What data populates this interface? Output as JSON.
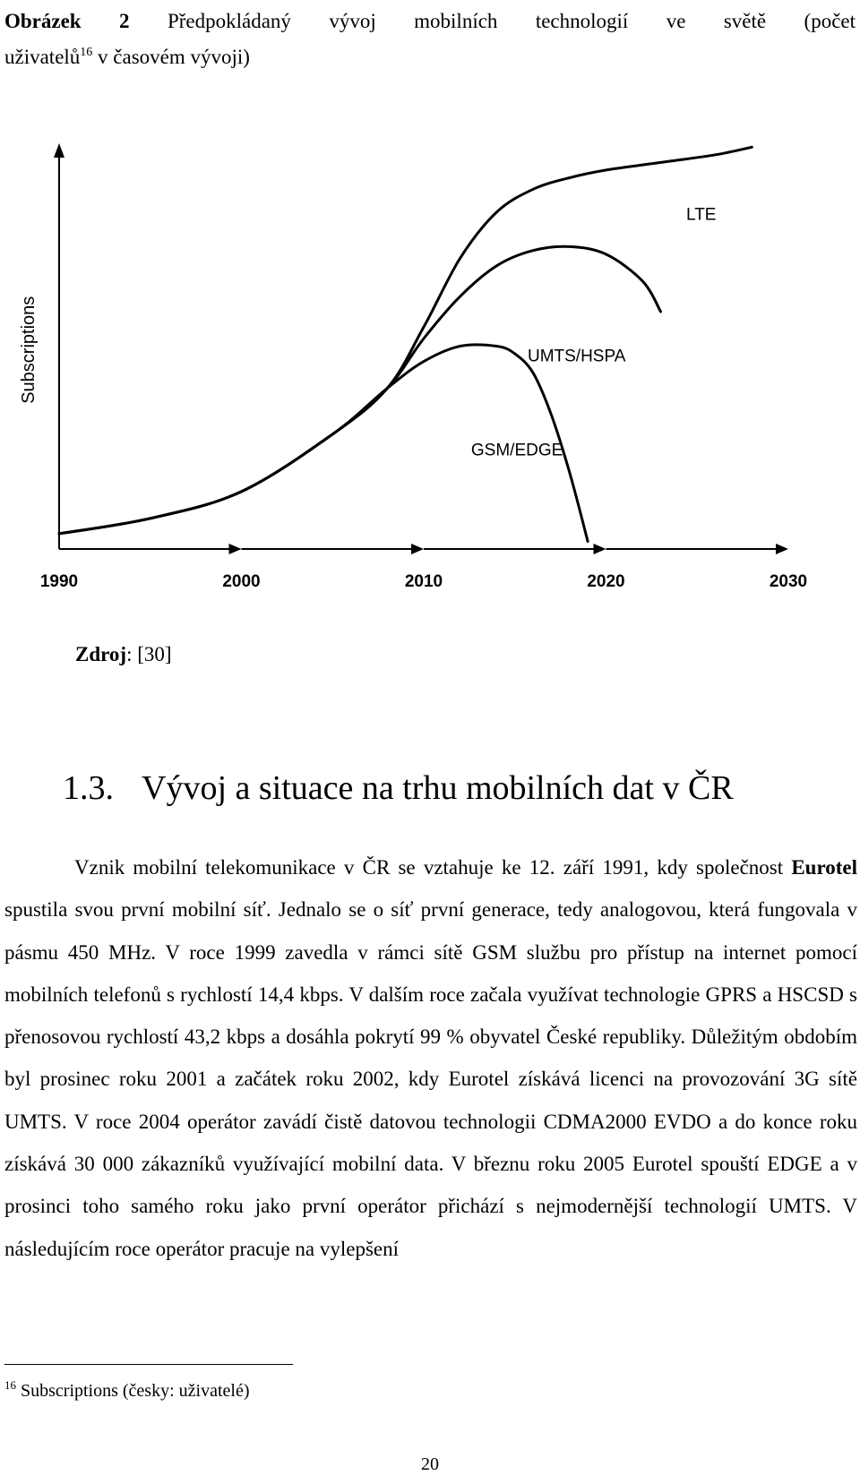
{
  "caption": {
    "label": "Obrázek 2",
    "text_line1": "Předpokládaný vývoj mobilních technologií ve světě (počet",
    "text_line2_a": "uživatelů",
    "footnote_ref": "16",
    "text_line2_b": " v časovém vývoji)"
  },
  "chart_data": {
    "type": "line",
    "title": "",
    "xlabel": "",
    "ylabel": "Subscriptions",
    "x_ticks": [
      "1990",
      "2000",
      "2010",
      "2020",
      "2030"
    ],
    "xlim": [
      1990,
      2030
    ],
    "y_tick_labels": false,
    "grid": false,
    "legend": "labels next to curves",
    "line_color": "#000000",
    "series": [
      {
        "name": "GSM/EDGE",
        "x": [
          1990,
          1995,
          2000,
          2005,
          2008,
          2010,
          2012,
          2014,
          2015,
          2016,
          2017,
          2018,
          2019
        ],
        "y": [
          0.04,
          0.08,
          0.15,
          0.3,
          0.42,
          0.49,
          0.53,
          0.53,
          0.51,
          0.46,
          0.35,
          0.2,
          0.02
        ]
      },
      {
        "name": "UMTS/HSPA",
        "x": [
          1990,
          1995,
          2000,
          2005,
          2008,
          2010,
          2012,
          2014,
          2016,
          2018,
          2020,
          2022,
          2023
        ],
        "y": [
          0.04,
          0.08,
          0.15,
          0.3,
          0.42,
          0.55,
          0.66,
          0.74,
          0.78,
          0.79,
          0.77,
          0.7,
          0.62
        ]
      },
      {
        "name": "LTE",
        "x": [
          1990,
          1995,
          2000,
          2005,
          2008,
          2010,
          2012,
          2014,
          2016,
          2018,
          2020,
          2023,
          2026,
          2028
        ],
        "y": [
          0.04,
          0.08,
          0.15,
          0.3,
          0.42,
          0.58,
          0.76,
          0.88,
          0.94,
          0.97,
          0.99,
          1.01,
          1.03,
          1.05
        ]
      }
    ]
  },
  "source": {
    "label": "Zdroj",
    "value": ": [30]"
  },
  "section": {
    "number": "1.3.",
    "title": "Vývoj a situace na trhu mobilních dat v ČR"
  },
  "body": {
    "p1_a": "Vznik mobilní telekomunikace v ČR se vztahuje ke 12. září 1991, kdy společnost ",
    "p1_strong": "Eurotel",
    "p1_b": " spustila svou první mobilní síť. Jednalo se o síť první generace, tedy analogovou, která fungovala v pásmu 450 MHz. V roce 1999 zavedla v rámci sítě GSM službu pro přístup na internet pomocí mobilních telefonů s rychlostí 14,4 kbps. V dalším roce začala využívat technologie GPRS a HSCSD s přenosovou rychlostí 43,2 kbps a dosáhla pokrytí 99 % obyvatel České republiky. Důležitým obdobím byl prosinec roku 2001 a začátek roku 2002, kdy Eurotel získává licenci na provozování 3G sítě UMTS. V roce 2004 operátor zavádí čistě datovou technologii CDMA2000 EVDO a do konce roku získává 30 000 zákazníků využívající mobilní data. V březnu roku 2005 Eurotel spouští EDGE a v prosinci toho samého roku jako první operátor přichází s nejmodernější technologií UMTS. V následujícím roce operátor pracuje na vylepšení"
  },
  "footnote": {
    "number": "16",
    "text": " Subscriptions (česky: uživatelé)"
  },
  "page_number": "20"
}
